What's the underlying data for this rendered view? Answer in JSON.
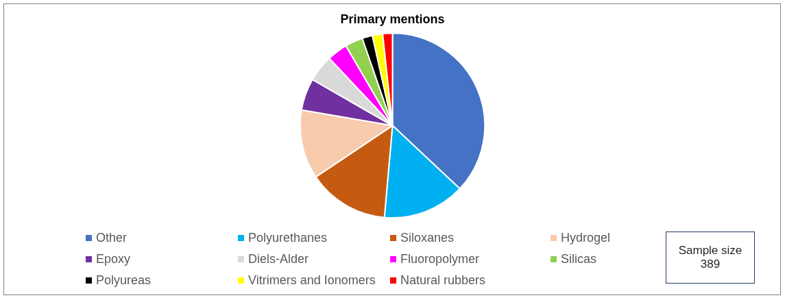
{
  "chart_data": {
    "type": "pie",
    "title": "Primary mentions",
    "categories": [
      "Other",
      "Polyurethanes",
      "Siloxanes",
      "Hydrogel",
      "Epoxy",
      "Diels-Alder",
      "Fluoropolymer",
      "Silicas",
      "Polyureas",
      "Vitrimers and Ionomers",
      "Natural rubbers"
    ],
    "values": [
      37,
      14.4,
      14.2,
      12.1,
      5.6,
      4.7,
      3.6,
      3.1,
      1.8,
      1.8,
      1.7
    ],
    "colors": [
      "#4472c4",
      "#00b0f0",
      "#c55a11",
      "#f8cbad",
      "#7030a0",
      "#d9d9d9",
      "#ff00ff",
      "#92d050",
      "#000000",
      "#ffff00",
      "#ff0000"
    ],
    "legend": "bottom",
    "annotations": [
      "Sample size\n389"
    ]
  }
}
